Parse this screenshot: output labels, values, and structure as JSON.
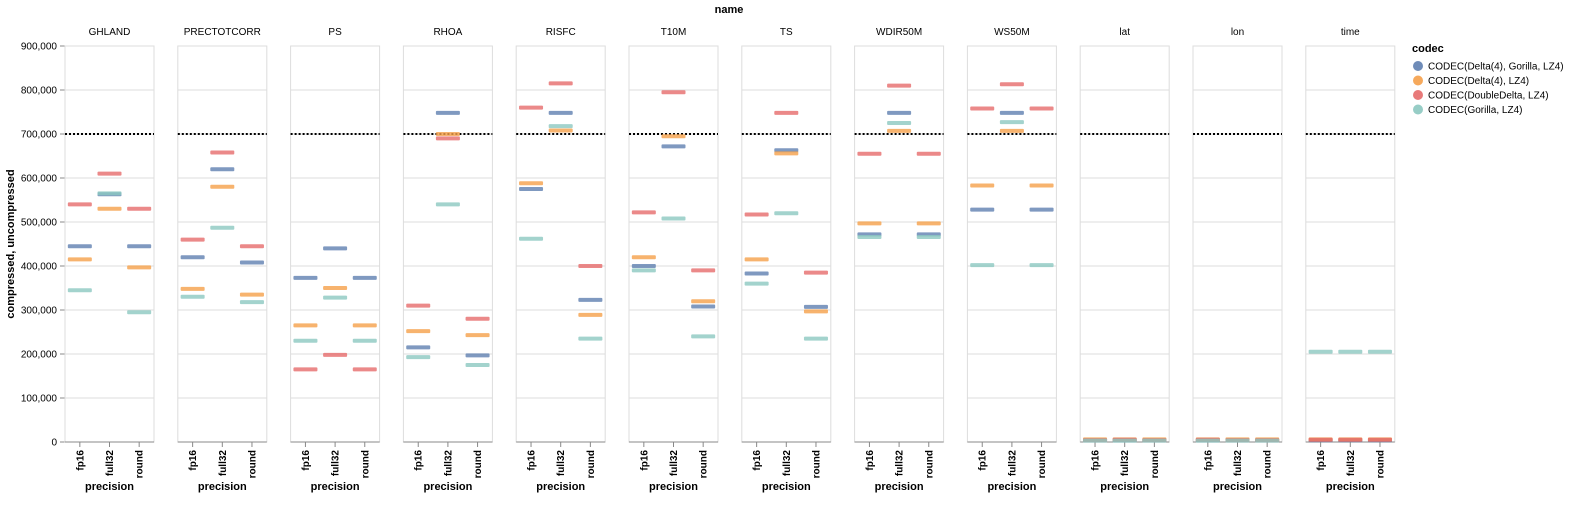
{
  "chart_data": {
    "type": "tick",
    "facet_header": "name",
    "xlabel": "precision",
    "ylabel": "compressed, uncompressed",
    "ylim": [
      0,
      900000
    ],
    "y_ticks": [
      0,
      100000,
      200000,
      300000,
      400000,
      500000,
      600000,
      700000,
      800000,
      900000
    ],
    "y_tick_labels": [
      "0",
      "100,000",
      "200,000",
      "300,000",
      "400,000",
      "500,000",
      "600,000",
      "700,000",
      "800,000",
      "900,000"
    ],
    "grid": true,
    "reference_line": 700000,
    "categories": [
      "fp16",
      "full32",
      "round"
    ],
    "legend": {
      "title": "codec",
      "placement": "top-right",
      "entries": [
        {
          "label": "CODEC(Delta(4), Gorilla, LZ4)",
          "color": "#5f7fb0"
        },
        {
          "label": "CODEC(Delta(4), LZ4)",
          "color": "#f5a04a"
        },
        {
          "label": "CODEC(DoubleDelta, LZ4)",
          "color": "#e66b6b"
        },
        {
          "label": "CODEC(Gorilla, LZ4)",
          "color": "#8cc8c0"
        }
      ]
    },
    "facets": [
      {
        "name": "GHLAND",
        "values": {
          "fp16": [
            445000,
            415000,
            540000,
            345000
          ],
          "full32": [
            563000,
            530000,
            610000,
            565000
          ],
          "round": [
            445000,
            397000,
            530000,
            295000
          ]
        }
      },
      {
        "name": "PRECTOTCORR",
        "values": {
          "fp16": [
            420000,
            348000,
            460000,
            330000
          ],
          "full32": [
            620000,
            580000,
            658000,
            487000
          ],
          "round": [
            408000,
            335000,
            445000,
            318000
          ]
        }
      },
      {
        "name": "PS",
        "values": {
          "fp16": [
            373000,
            265000,
            165000,
            230000
          ],
          "full32": [
            440000,
            350000,
            198000,
            328000
          ],
          "round": [
            373000,
            265000,
            165000,
            230000
          ]
        }
      },
      {
        "name": "RHOA",
        "values": {
          "fp16": [
            215000,
            252000,
            310000,
            193000
          ],
          "full32": [
            748000,
            700000,
            690000,
            540000
          ],
          "round": [
            197000,
            243000,
            280000,
            175000
          ]
        }
      },
      {
        "name": "RISFC",
        "values": {
          "fp16": [
            575000,
            588000,
            760000,
            462000
          ],
          "full32": [
            748000,
            708000,
            815000,
            718000
          ],
          "round": [
            323000,
            289000,
            400000,
            235000
          ]
        }
      },
      {
        "name": "T10M",
        "values": {
          "fp16": [
            400000,
            420000,
            522000,
            390000
          ],
          "full32": [
            672000,
            695000,
            795000,
            508000
          ],
          "round": [
            308000,
            320000,
            390000,
            240000
          ]
        }
      },
      {
        "name": "TS",
        "values": {
          "fp16": [
            383000,
            415000,
            517000,
            360000
          ],
          "full32": [
            663000,
            656000,
            748000,
            520000
          ],
          "round": [
            307000,
            297000,
            385000,
            235000
          ]
        }
      },
      {
        "name": "WDIR50M",
        "values": {
          "fp16": [
            472000,
            497000,
            655000,
            466000
          ],
          "full32": [
            748000,
            707000,
            810000,
            725000
          ],
          "round": [
            472000,
            497000,
            655000,
            466000
          ]
        }
      },
      {
        "name": "WS50M",
        "values": {
          "fp16": [
            528000,
            583000,
            758000,
            402000
          ],
          "full32": [
            748000,
            707000,
            813000,
            727000
          ],
          "round": [
            528000,
            583000,
            758000,
            402000
          ]
        }
      },
      {
        "name": "lat",
        "values": {
          "fp16": [
            4000,
            6000,
            4000,
            3000
          ],
          "full32": [
            4000,
            6000,
            5000,
            3000
          ],
          "round": [
            4000,
            6000,
            4000,
            3000
          ]
        }
      },
      {
        "name": "lon",
        "values": {
          "fp16": [
            4000,
            6000,
            5000,
            3000
          ],
          "full32": [
            4000,
            6000,
            4000,
            3000
          ],
          "round": [
            4000,
            6000,
            4000,
            3000
          ]
        }
      },
      {
        "name": "time",
        "values": {
          "fp16": [
            4000,
            6000,
            5000,
            205000
          ],
          "full32": [
            4000,
            6000,
            5000,
            205000
          ],
          "round": [
            4000,
            6000,
            5000,
            205000
          ]
        }
      }
    ]
  }
}
